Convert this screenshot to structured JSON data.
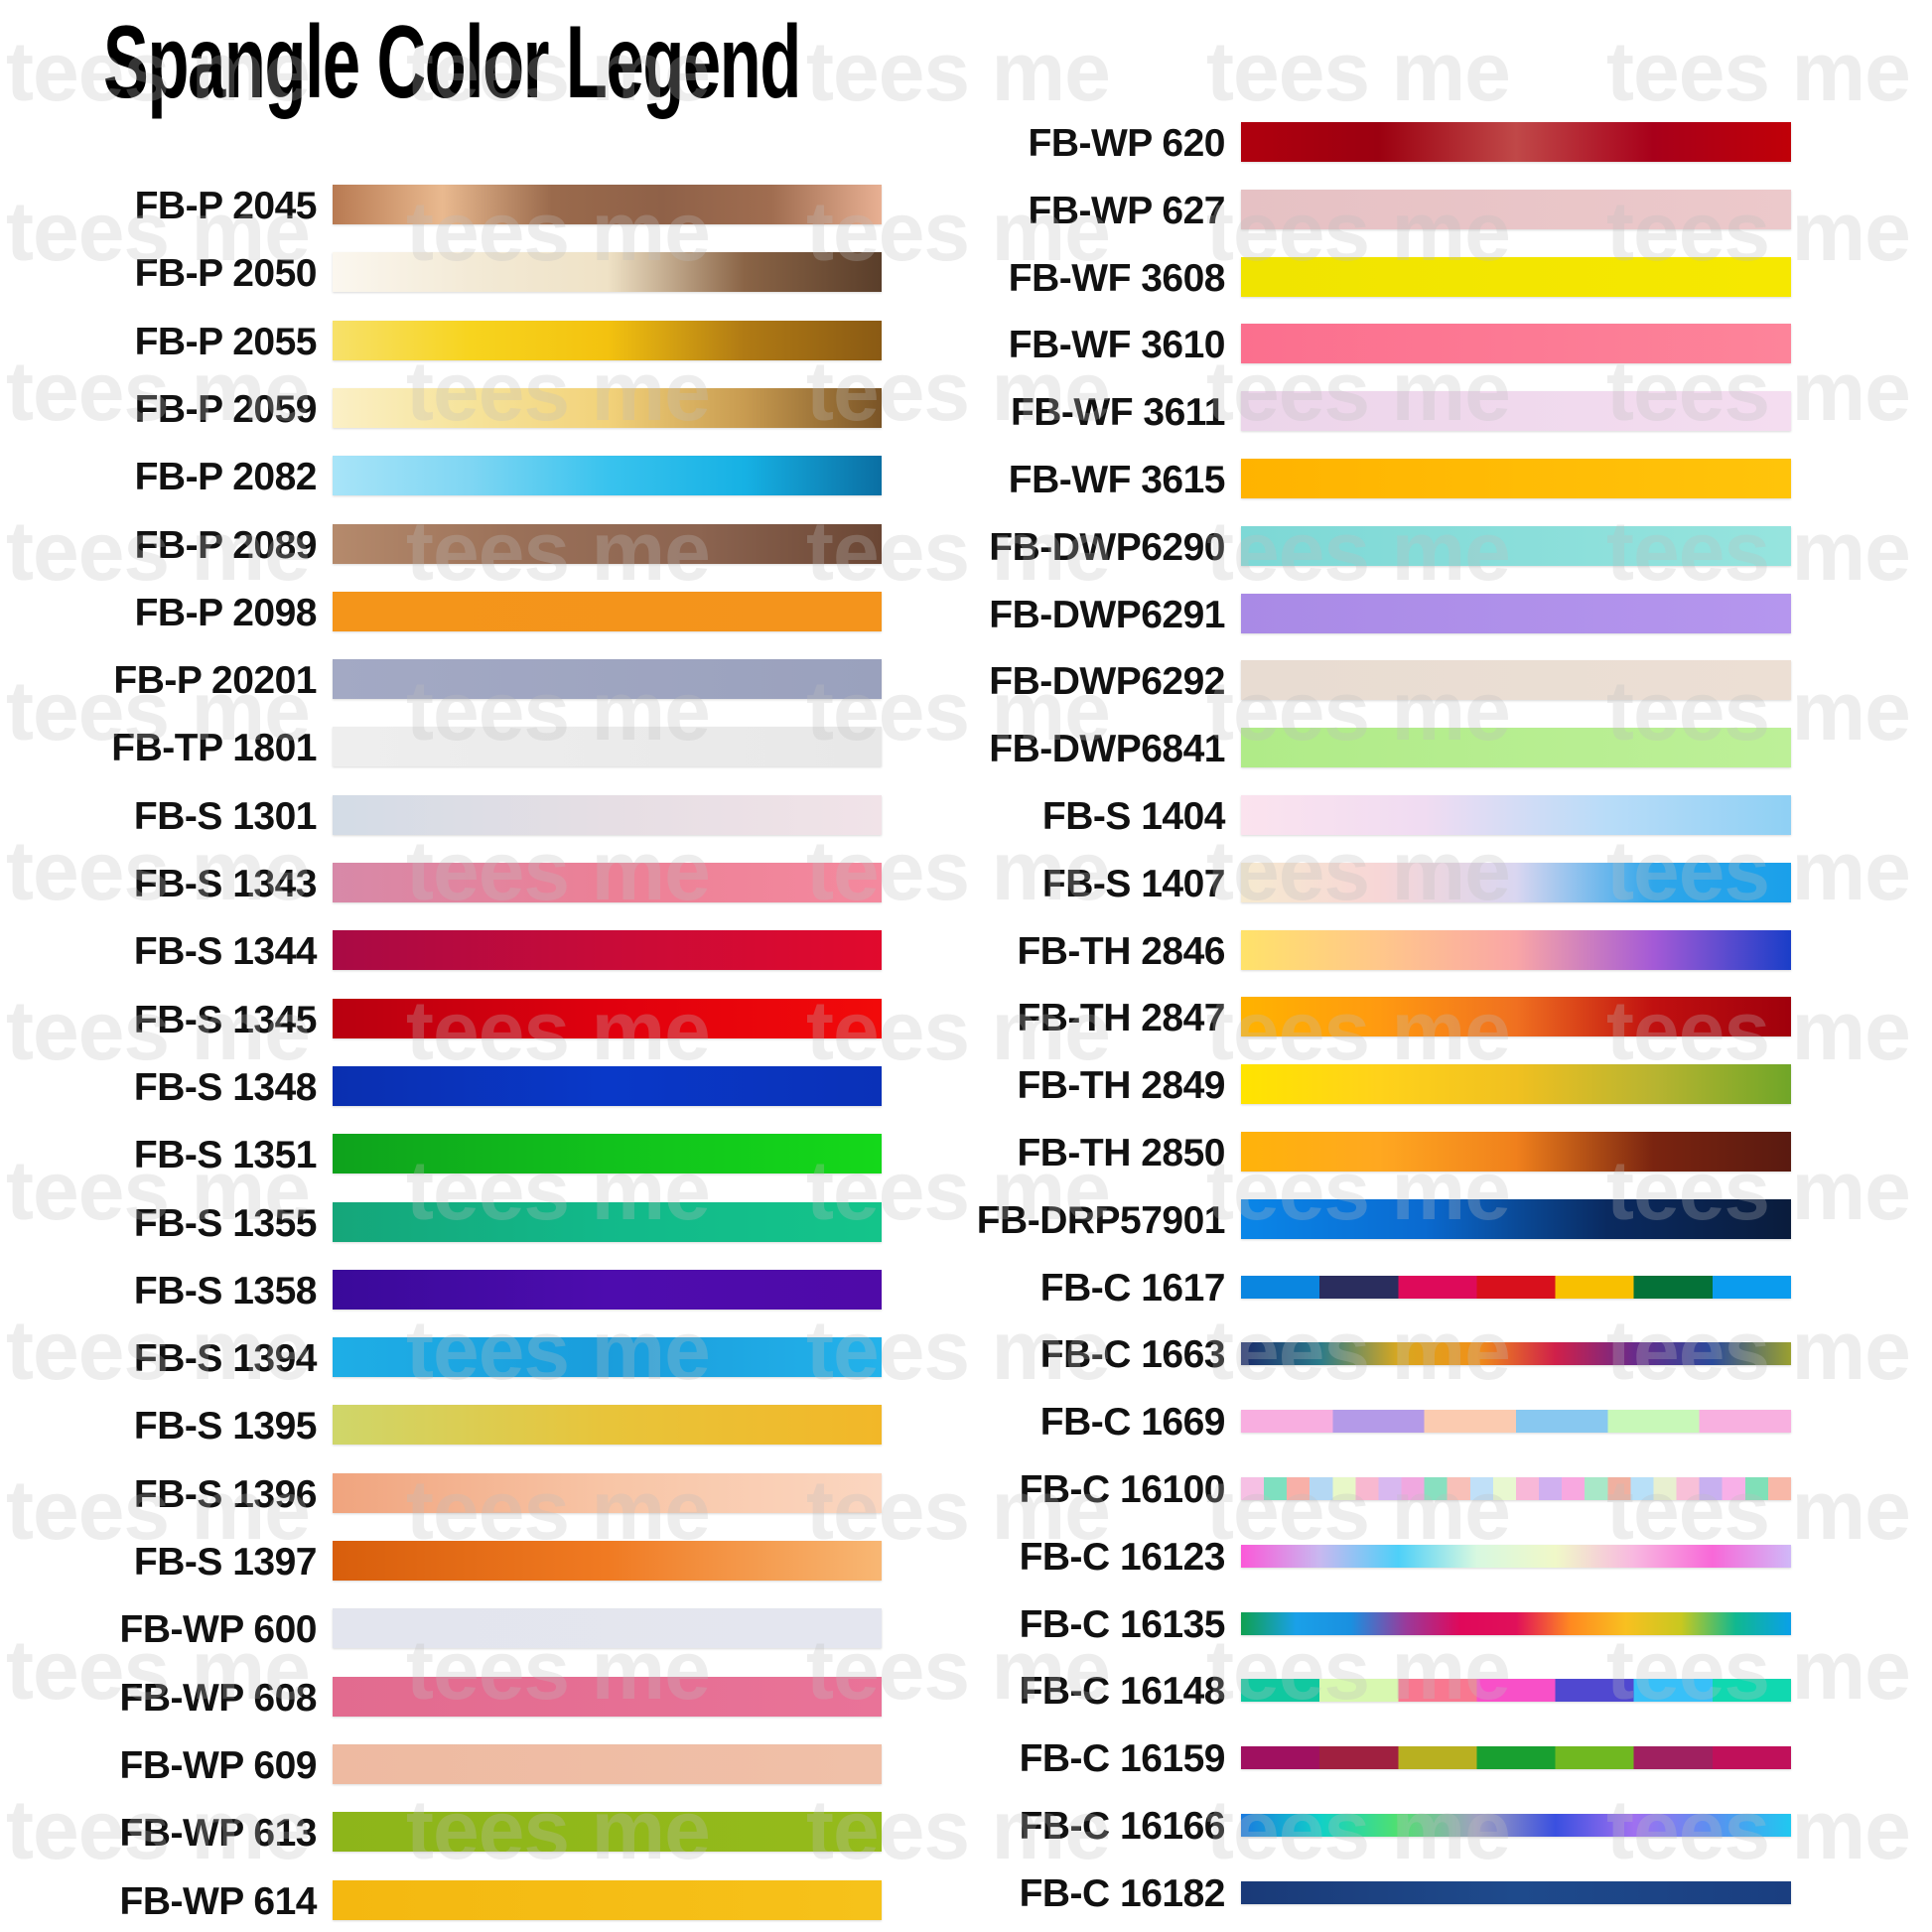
{
  "title": "Spangle Color Legend",
  "watermark": "tees me",
  "left_column": [
    {
      "code": "FB-P 2045",
      "colors": [
        "#b87a52",
        "#e9b98f",
        "#9a6a4c",
        "#8f6148",
        "#a06d50",
        "#e8b093"
      ]
    },
    {
      "code": "FB-P 2050",
      "colors": [
        "#fbf7ef",
        "#f3ead6",
        "#efe2c6",
        "#8a6446",
        "#5a3e2a"
      ]
    },
    {
      "code": "FB-P 2055",
      "colors": [
        "#f7e16a",
        "#f7d41e",
        "#f3c20f",
        "#b07a14",
        "#8a5a14"
      ]
    },
    {
      "code": "FB-P 2059",
      "colors": [
        "#fbf0c6",
        "#f6e39a",
        "#f2d27a",
        "#c89b50",
        "#7a5426"
      ]
    },
    {
      "code": "FB-P 2082",
      "colors": [
        "#a8e4f8",
        "#7fd6f3",
        "#39c3ee",
        "#16b1e4",
        "#0a6fa3"
      ]
    },
    {
      "code": "FB-P 2089",
      "colors": [
        "#b58a6c",
        "#9a7058",
        "#8c6450",
        "#6a4634"
      ]
    },
    {
      "code": "FB-P 2098",
      "colors": [
        "#f4951a",
        "#f4941c"
      ]
    },
    {
      "code": "FB-P 20201",
      "colors": [
        "#a3a9c4",
        "#9aa1bd"
      ]
    },
    {
      "code": "FB-TP 1801",
      "colors": [
        "#eeeeee",
        "#e8e8e8"
      ]
    },
    {
      "code": "FB-S 1301",
      "colors": [
        "#d3dce6",
        "#e6dee4",
        "#f1e3e8"
      ]
    },
    {
      "code": "FB-S 1343",
      "colors": [
        "#d789a8",
        "#ec8096",
        "#f4899e"
      ]
    },
    {
      "code": "FB-S 1344",
      "colors": [
        "#a90a45",
        "#c80b38",
        "#e10a2d"
      ]
    },
    {
      "code": "FB-S 1345",
      "colors": [
        "#b80010",
        "#e0000e",
        "#f20a0a"
      ]
    },
    {
      "code": "FB-S 1348",
      "colors": [
        "#0a2fb0",
        "#0938c8",
        "#0a31b8"
      ]
    },
    {
      "code": "FB-S 1351",
      "colors": [
        "#0ea21c",
        "#11c21c",
        "#14d81a"
      ]
    },
    {
      "code": "FB-S 1355",
      "colors": [
        "#15a67a",
        "#12b98a",
        "#14c48a"
      ]
    },
    {
      "code": "FB-S 1358",
      "colors": [
        "#3a0a9a",
        "#4d0cae",
        "#4f0aa8"
      ]
    },
    {
      "code": "FB-S 1394",
      "colors": [
        "#1eaee6",
        "#1a9ddc",
        "#23b2ea"
      ]
    },
    {
      "code": "FB-S 1395",
      "colors": [
        "#cfd66a",
        "#e8c43a",
        "#f2b728"
      ]
    },
    {
      "code": "FB-S 1396",
      "colors": [
        "#f0a47e",
        "#f8c5a6",
        "#fbd6c0"
      ]
    },
    {
      "code": "FB-S 1397",
      "colors": [
        "#d85e0c",
        "#f07a22",
        "#f8b774"
      ]
    },
    {
      "code": "FB-WP 600",
      "colors": [
        "#e3e5ee",
        "#e4e6ef"
      ]
    },
    {
      "code": "FB-WP 608",
      "colors": [
        "#e26b8f",
        "#e97398"
      ]
    },
    {
      "code": "FB-WP 609",
      "colors": [
        "#eebaa1",
        "#f0c0a8"
      ]
    },
    {
      "code": "FB-WP 613",
      "colors": [
        "#8db51a",
        "#95bb1b"
      ]
    },
    {
      "code": "FB-WP 614",
      "colors": [
        "#f4b810",
        "#f6c21a"
      ]
    }
  ],
  "right_column": [
    {
      "code": "FB-WP 620",
      "colors": [
        "#b0000e",
        "#9c0010",
        "#c04848",
        "#a8001a",
        "#c00008"
      ]
    },
    {
      "code": "FB-WP 627",
      "colors": [
        "#e6c1c4",
        "#ecc9cb"
      ]
    },
    {
      "code": "FB-WF 3608",
      "colors": [
        "#f0e400",
        "#f6e800"
      ]
    },
    {
      "code": "FB-WF 3610",
      "colors": [
        "#fb6f8e",
        "#fd849a"
      ]
    },
    {
      "code": "FB-WF 3611",
      "colors": [
        "#ecd5ea",
        "#f4ddf0"
      ]
    },
    {
      "code": "FB-WF 3615",
      "colors": [
        "#ffb300",
        "#ffc40a"
      ]
    },
    {
      "code": "FB-DWP6290",
      "colors": [
        "#7dd8d6",
        "#96e4de"
      ]
    },
    {
      "code": "FB-DWP6291",
      "colors": [
        "#a98ae6",
        "#b596ee"
      ]
    },
    {
      "code": "FB-DWP6292",
      "colors": [
        "#e8dcd2",
        "#ecdfd4"
      ]
    },
    {
      "code": "FB-DWP6841",
      "colors": [
        "#b0eb88",
        "#bdf098"
      ]
    },
    {
      "code": "FB-S 1404",
      "colors": [
        "#fbe3ee",
        "#f0dcf2",
        "#b8dcf8",
        "#8fd0f4"
      ]
    },
    {
      "code": "FB-S 1407",
      "colors": [
        "#f6ead0",
        "#f7d6d6",
        "#d9d6f0",
        "#2fa6ea",
        "#1aa0ea"
      ]
    },
    {
      "code": "FB-TH 2846",
      "colors": [
        "#ffe26a",
        "#ffc78a",
        "#f9a6a6",
        "#a45ad6",
        "#1a3ec8"
      ]
    },
    {
      "code": "FB-TH 2847",
      "colors": [
        "#ffb300",
        "#ff9a10",
        "#f07020",
        "#c01010",
        "#a0000c"
      ]
    },
    {
      "code": "FB-TH 2849",
      "colors": [
        "#ffe400",
        "#ffd21a",
        "#f0c020",
        "#b8b430",
        "#70a628"
      ]
    },
    {
      "code": "FB-TH 2850",
      "colors": [
        "#ffb30a",
        "#ffa820",
        "#f0801c",
        "#7a2410",
        "#5a1a10"
      ]
    },
    {
      "code": "FB-DRP57901",
      "colors": [
        "#0a86e8",
        "#0a6ad0",
        "#0a2a60",
        "#0a1c3c"
      ]
    },
    {
      "code": "FB-C 1617",
      "stripes": true,
      "thin": true,
      "colors": [
        "#0a86e0",
        "#2a2d5e",
        "#de0a5a",
        "#d8101c",
        "#f8c000",
        "#047238",
        "#0a9cee"
      ]
    },
    {
      "code": "FB-C 1663",
      "thin": true,
      "colors": [
        "#1a2a6a",
        "#2a7a8a",
        "#d8a820",
        "#f09018",
        "#d0204a",
        "#6a2a8a",
        "#2a4a9a",
        "#9aa030"
      ]
    },
    {
      "code": "FB-C 1669",
      "stripes": true,
      "thin": true,
      "colors": [
        "#f8aee0",
        "#b49ae8",
        "#fbcbb0",
        "#88c8f0",
        "#c8f8b8",
        "#f8b0e0"
      ]
    },
    {
      "code": "FB-C 16100",
      "stripes": true,
      "thin": true,
      "colors": [
        "#f6c0e4",
        "#7ee0c0",
        "#f8b0a8",
        "#b4d8f4",
        "#e8f8c8",
        "#f8b8d0",
        "#d8b8f0",
        "#f0a8e0",
        "#88e0c0",
        "#f8c0b8",
        "#c0e0f8",
        "#e8f8d0",
        "#f8b8d8",
        "#d0b0f0",
        "#f8a8e0",
        "#a8e8c8",
        "#f0b0a0",
        "#b8e0f8",
        "#e8f0d0",
        "#f8c0d8",
        "#c8b0f0",
        "#f8b0e8",
        "#80e0b8",
        "#f8b8a8"
      ]
    },
    {
      "code": "FB-C 16123",
      "thin": true,
      "colors": [
        "#fb58d8",
        "#c8b8f0",
        "#4ed0f8",
        "#d8f8e0",
        "#f0f8c8",
        "#f8b8e0",
        "#f868d8",
        "#d0b8f8"
      ]
    },
    {
      "code": "FB-C 16135",
      "thin": true,
      "colors": [
        "#10a050",
        "#1aa0e8",
        "#1a90e0",
        "#9a3a9a",
        "#e0085a",
        "#e0105a",
        "#ff8a20",
        "#f8c020",
        "#c8c820",
        "#10b890",
        "#0aa0e8"
      ]
    },
    {
      "code": "FB-C 16148",
      "stripes": true,
      "thin": true,
      "colors": [
        "#10c8a0",
        "#d8f8b0",
        "#f87890",
        "#f850c8",
        "#5048d0",
        "#38c0f8",
        "#10d8b0"
      ]
    },
    {
      "code": "FB-C 16159",
      "stripes": true,
      "thin": true,
      "colors": [
        "#a01060",
        "#a02040",
        "#b8b020",
        "#18a030",
        "#70b820",
        "#a02060",
        "#c0105a"
      ]
    },
    {
      "code": "FB-C 16166",
      "thin": true,
      "colors": [
        "#1a7ae0",
        "#10d0c8",
        "#50e070",
        "#a0a0c0",
        "#3a50e0",
        "#a070f0",
        "#5a90f0",
        "#20c8f0"
      ]
    },
    {
      "code": "FB-C 16182",
      "thin": true,
      "colors": [
        "#1a3a78",
        "#1e4a8c",
        "#1a3e80"
      ]
    }
  ]
}
